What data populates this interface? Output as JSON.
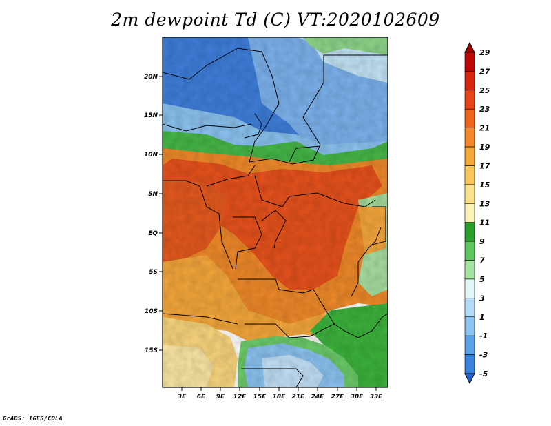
{
  "title": "2m dewpoint Td (C) VT:2020102609",
  "credit": "GrADS: IGES/COLA",
  "map": {
    "lat_labels": [
      "20N",
      "15N",
      "10N",
      "5N",
      "EQ",
      "5S",
      "10S",
      "15S"
    ],
    "lon_labels": [
      "3E",
      "6E",
      "9E",
      "12E",
      "15E",
      "18E",
      "21E",
      "24E",
      "27E",
      "30E",
      "33E"
    ],
    "field_colors": {
      "blue": "#3a78d8",
      "light_blue": "#7fb2ee",
      "pale_blue": "#c8e6fa",
      "green": "#3cbc3c",
      "orange": "#f0922a",
      "red_orange": "#e8501c",
      "light_orange": "#f6b04a",
      "yellow": "#fbe08a"
    }
  },
  "colorbar": {
    "labels": [
      "29",
      "27",
      "25",
      "23",
      "21",
      "19",
      "17",
      "15",
      "13",
      "11",
      "9",
      "7",
      "5",
      "3",
      "1",
      "-1",
      "-3",
      "-5"
    ],
    "colors": [
      "#a00000",
      "#c00808",
      "#d8250e",
      "#e8461a",
      "#f0641e",
      "#f4882a",
      "#f6a93a",
      "#f8c858",
      "#fbe28a",
      "#fbf4b8",
      "#2ca02c",
      "#5cc85c",
      "#a6e2a0",
      "#e2f8f8",
      "#b4dcf8",
      "#8cc4f2",
      "#5ca4ea",
      "#3a84e0",
      "#1f62d4"
    ]
  }
}
